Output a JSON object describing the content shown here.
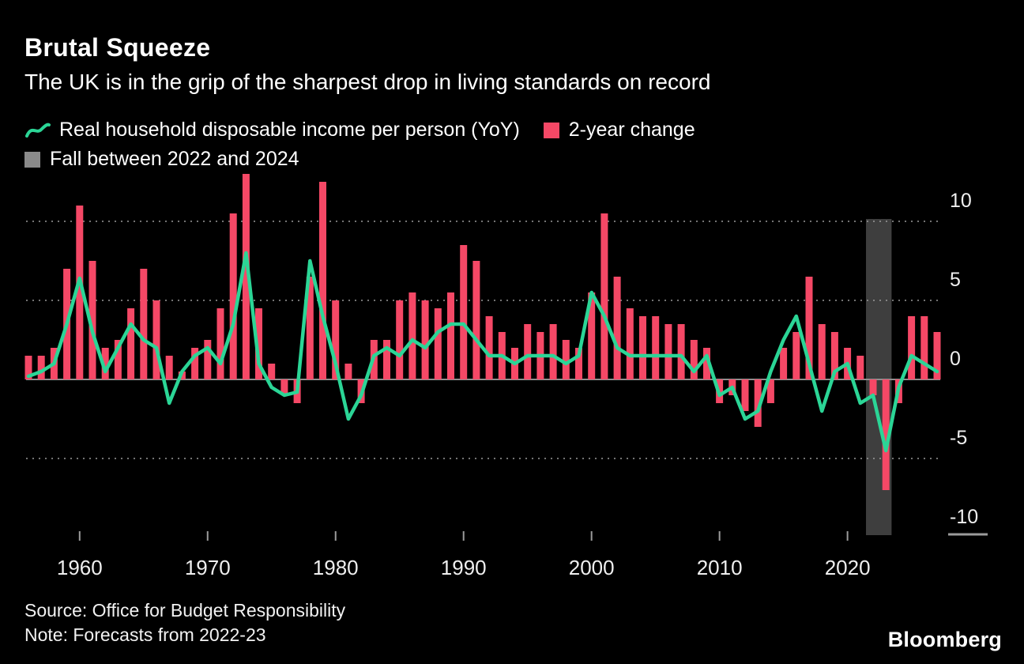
{
  "header": {
    "title": "Brutal Squeeze",
    "subtitle": "The UK is in the grip of the sharpest drop in living standards on record"
  },
  "legend": {
    "items": [
      {
        "label": "Real household disposable income per person (YoY)",
        "type": "line",
        "color": "#2bd596"
      },
      {
        "label": "2-year change",
        "type": "square",
        "color": "#f54866"
      },
      {
        "label": "Fall between 2022 and 2024",
        "type": "square",
        "color": "#8a8a8a"
      }
    ]
  },
  "colors": {
    "background": "#000000",
    "text": "#ffffff",
    "grid": "#9b9b9b"
  },
  "chart_data": {
    "type": "bar",
    "title": "Brutal Squeeze",
    "subtitle": "The UK is in the grip of the sharpest drop in living standards on record",
    "xlabel": "",
    "ylabel": "",
    "x": [
      1956,
      1957,
      1958,
      1959,
      1960,
      1961,
      1962,
      1963,
      1964,
      1965,
      1966,
      1967,
      1968,
      1969,
      1970,
      1971,
      1972,
      1973,
      1974,
      1975,
      1976,
      1977,
      1978,
      1979,
      1980,
      1981,
      1982,
      1983,
      1984,
      1985,
      1986,
      1987,
      1988,
      1989,
      1990,
      1991,
      1992,
      1993,
      1994,
      1995,
      1996,
      1997,
      1998,
      1999,
      2000,
      2001,
      2002,
      2003,
      2004,
      2005,
      2006,
      2007,
      2008,
      2009,
      2010,
      2011,
      2012,
      2013,
      2014,
      2015,
      2016,
      2017,
      2018,
      2019,
      2020,
      2021,
      2022,
      2023,
      2024,
      2025,
      2026,
      2027
    ],
    "series": [
      {
        "name": "2-year change",
        "type": "bar",
        "color": "#f54866",
        "values": [
          1.5,
          1.5,
          2.0,
          7.0,
          11.0,
          7.5,
          2.0,
          2.5,
          4.5,
          7.0,
          5.0,
          1.5,
          0.5,
          2.0,
          2.5,
          4.5,
          10.5,
          13.0,
          4.5,
          1.0,
          -1.0,
          -1.5,
          6.5,
          12.5,
          5.0,
          1.0,
          -1.5,
          2.5,
          2.5,
          5.0,
          5.5,
          5.0,
          4.5,
          5.5,
          8.5,
          7.5,
          4.0,
          3.0,
          2.0,
          3.5,
          3.0,
          3.5,
          2.5,
          2.0,
          5.5,
          10.5,
          6.5,
          4.5,
          4.0,
          4.0,
          3.5,
          3.5,
          2.5,
          2.0,
          -1.5,
          -1.0,
          -2.0,
          -3.0,
          -1.5,
          2.0,
          3.0,
          6.5,
          3.5,
          3.0,
          2.0,
          1.5,
          -1.0,
          -7.0,
          -1.5,
          4.0,
          4.0,
          3.0
        ]
      },
      {
        "name": "Real household disposable income per person (YoY)",
        "type": "line",
        "color": "#2bd596",
        "values": [
          0.2,
          0.5,
          1.0,
          3.5,
          6.4,
          3.0,
          0.5,
          2.0,
          3.5,
          2.5,
          2.0,
          -1.5,
          0.5,
          1.5,
          2.0,
          1.0,
          3.5,
          8.0,
          1.0,
          -0.5,
          -1.0,
          -0.8,
          7.5,
          4.0,
          1.0,
          -2.5,
          -1.0,
          1.5,
          2.0,
          1.5,
          2.5,
          2.0,
          3.0,
          3.5,
          3.5,
          2.5,
          1.5,
          1.5,
          1.0,
          1.5,
          1.5,
          1.5,
          1.0,
          1.5,
          5.5,
          4.0,
          2.0,
          1.5,
          1.5,
          1.5,
          1.5,
          1.5,
          0.5,
          1.5,
          -1.0,
          -0.5,
          -2.5,
          -2.0,
          0.5,
          2.5,
          4.0,
          1.0,
          -2.0,
          0.5,
          1.0,
          -1.5,
          -1.0,
          -4.5,
          -0.5,
          1.5,
          1.0,
          0.5
        ]
      }
    ],
    "highlight_band": {
      "label": "Fall between 2022 and 2024",
      "from": 2022,
      "to": 2024,
      "color": "#8a8a8a"
    },
    "y_ticks": [
      10,
      5,
      0,
      -5,
      -10
    ],
    "x_ticks": [
      1960,
      1970,
      1980,
      1990,
      2000,
      2010,
      2020
    ],
    "ylim": [
      -10.5,
      13.5
    ],
    "xlim": [
      1955.5,
      2027.5
    ],
    "grid": "dotted horizontal gridlines at 10, 5, -5; solid zero line",
    "legend_position": "top-left"
  },
  "footer": {
    "source": "Source: Office for Budget Responsibility",
    "note": "Note: Forecasts from 2022-23",
    "logo": "Bloomberg"
  }
}
